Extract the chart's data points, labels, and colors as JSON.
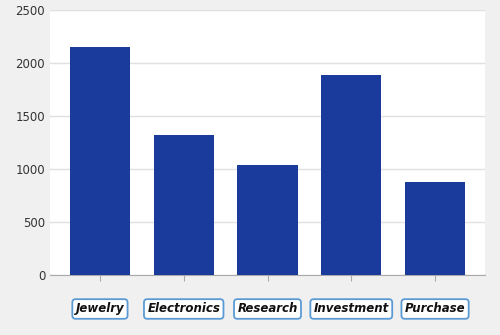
{
  "categories": [
    "Jewelry",
    "Electronics",
    "Research",
    "Investment",
    "Purchase"
  ],
  "values": [
    2150,
    1320,
    1040,
    1890,
    880
  ],
  "bar_color": "#1a3a9c",
  "ylim": [
    0,
    2500
  ],
  "yticks": [
    0,
    500,
    1000,
    1500,
    2000,
    2500
  ],
  "background_color": "#f0f0f0",
  "plot_bg_color": "#ffffff",
  "grid_color": "#e0e0e0",
  "label_box_color": "#ffffff",
  "label_box_edge_color": "#5b9bd5",
  "label_fontsize": 8.5,
  "tick_fontsize": 8.5,
  "bar_width": 0.72
}
